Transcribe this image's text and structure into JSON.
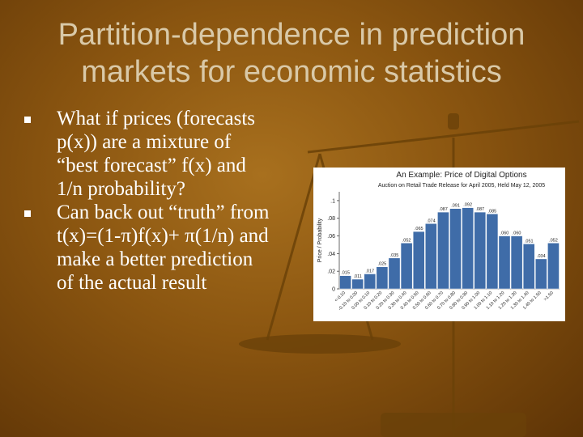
{
  "slide": {
    "title": "Partition-dependence in prediction\nmarkets for economic statistics",
    "bullets": [
      "What if prices (forecasts p(x)) are a mixture of “best forecast” f(x) and 1/n probability?",
      "Can back out “truth” from t(x)=(1-π)f(x)+ π(1/n) and make a better prediction of the actual result"
    ]
  },
  "colors": {
    "background": "#8a5510",
    "title": "#d9c9a8",
    "text": "#ffffff",
    "bar": "#3f6ca8"
  },
  "chart_data": {
    "type": "bar",
    "title": "An Example: Price of Digital Options",
    "subtitle": "Auction on Retail Trade Release for April 2005, Held May 12, 2005",
    "ylabel": "Price / Probability",
    "xlabel": "",
    "ylim": [
      0,
      0.11
    ],
    "yticks": [
      "0",
      ".02",
      ".04",
      ".06",
      ".08",
      ".1"
    ],
    "categories": [
      "<-0.10",
      "-0.10 to 0.00",
      "0.00 to 0.10",
      "0.10 to 0.20",
      "0.20 to 0.30",
      "0.30 to 0.40",
      "0.40 to 0.50",
      "0.50 to 0.60",
      "0.60 to 0.70",
      "0.70 to 0.80",
      "0.80 to 0.90",
      "0.90 to 1.00",
      "1.00 to 1.10",
      "1.10 to 1.20",
      "1.20 to 1.30",
      "1.30 to 1.40",
      "1.40 to 1.50",
      ">1.50"
    ],
    "values": [
      0.015,
      0.011,
      0.017,
      0.025,
      0.035,
      0.052,
      0.065,
      0.074,
      0.087,
      0.091,
      0.092,
      0.087,
      0.085,
      0.06,
      0.06,
      0.051,
      0.034,
      0.052
    ],
    "labels": [
      ".015",
      ".011",
      ".017",
      ".025",
      ".035",
      ".052",
      ".065",
      ".074",
      ".087",
      ".091",
      ".092",
      ".087",
      ".085",
      ".060",
      ".060",
      ".051",
      ".034",
      ".052"
    ],
    "grid": false,
    "legend": "none"
  }
}
